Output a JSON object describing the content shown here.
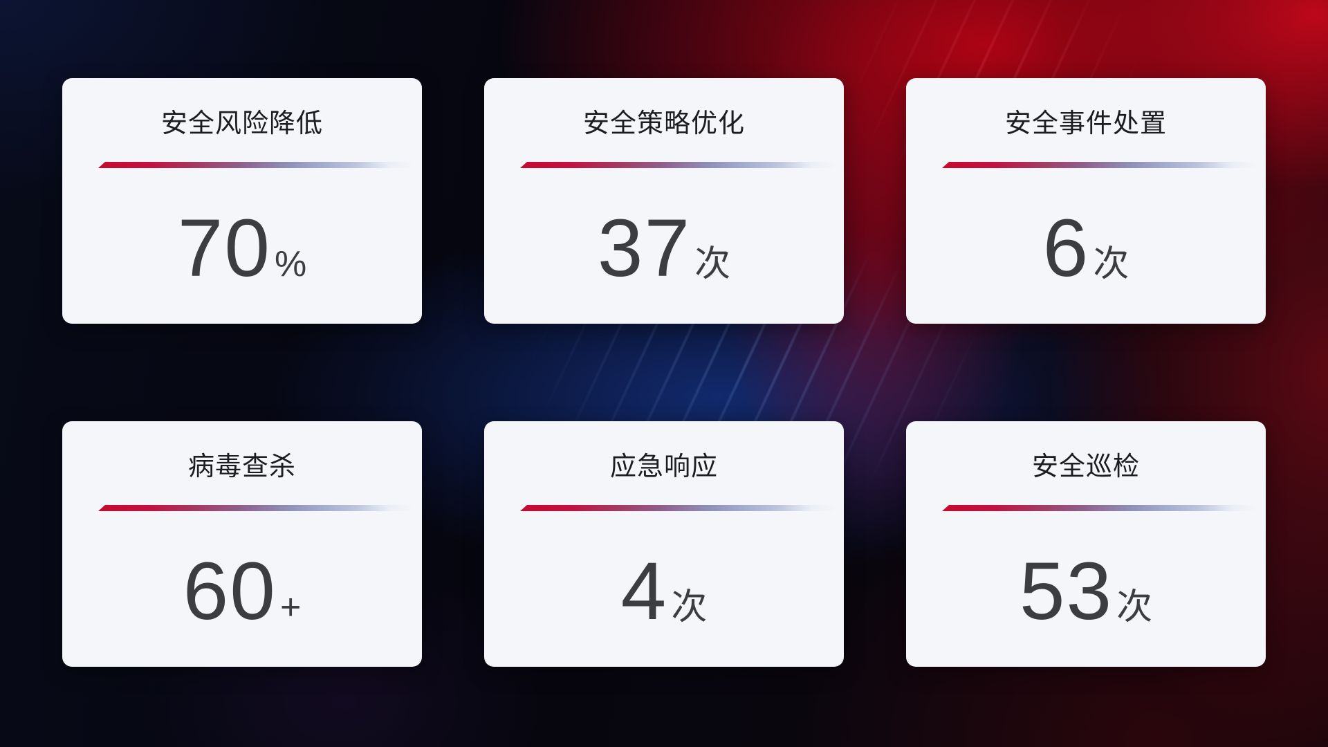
{
  "theme": {
    "card_bg": "#f4f6f9",
    "title_color": "#1c1d21",
    "value_color": "#3c3d41",
    "divider_start_color": "#c60a2e",
    "divider_end_color": "#bcc6dc",
    "background_base_color": "#06060f",
    "background_red_glow": "#ba0414",
    "background_blue_glow": "#173c9e"
  },
  "cards": [
    {
      "label": "安全风险降低",
      "value": "70",
      "unit": "%"
    },
    {
      "label": "安全策略优化",
      "value": "37",
      "unit": "次"
    },
    {
      "label": "安全事件处置",
      "value": "6",
      "unit": "次"
    },
    {
      "label": "病毒查杀",
      "value": "60",
      "unit": "+"
    },
    {
      "label": "应急响应",
      "value": "4",
      "unit": "次"
    },
    {
      "label": "安全巡检",
      "value": "53",
      "unit": "次"
    }
  ]
}
